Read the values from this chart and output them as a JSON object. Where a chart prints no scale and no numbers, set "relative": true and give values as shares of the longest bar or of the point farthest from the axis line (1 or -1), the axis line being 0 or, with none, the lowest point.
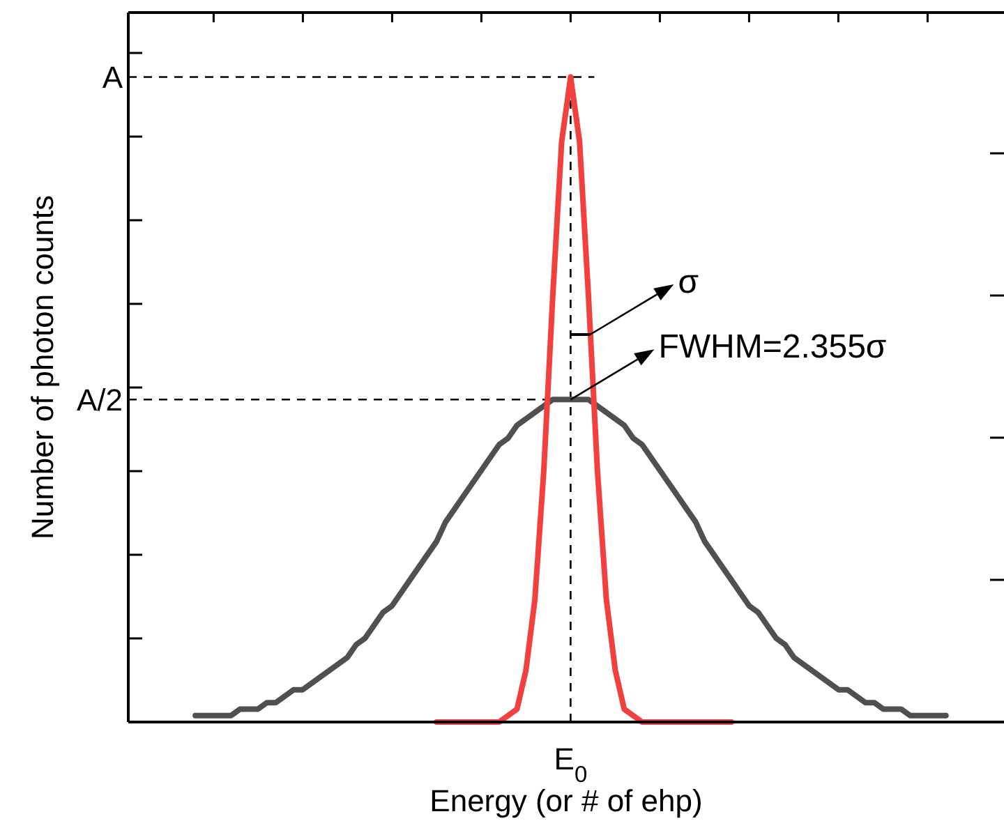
{
  "chart_data": {
    "type": "line",
    "relative": true,
    "xlabel": "Energy (or # of ehp)",
    "ylabel": "Number of photon counts",
    "categories": [
      null,
      null,
      null,
      null,
      null,
      null,
      null,
      null,
      null,
      null,
      null,
      null,
      null,
      null,
      null,
      null,
      null,
      null,
      null,
      null,
      null,
      null,
      null,
      null,
      null,
      null,
      null,
      null,
      null,
      null,
      null,
      null,
      null,
      null,
      null,
      null,
      null,
      null,
      null,
      null,
      null,
      null,
      null,
      null,
      null,
      null,
      null,
      null,
      null,
      null,
      null,
      null,
      null,
      null,
      null,
      null,
      null,
      null,
      null,
      null,
      null,
      null,
      null,
      null,
      null,
      null,
      null,
      null,
      null,
      null,
      null,
      null,
      null,
      null,
      null,
      null,
      null,
      null,
      null,
      null,
      null,
      null,
      null,
      null,
      null,
      null,
      null,
      null,
      null,
      null,
      null,
      null,
      null,
      null,
      null,
      null,
      null,
      null
    ],
    "grid": false,
    "legend": false,
    "marker": "none",
    "line_style": "solid",
    "series": [
      {
        "color": "#505050",
        "values": [
          null,
          null,
          null,
          null,
          null,
          null,
          null,
          0.01,
          0.01,
          0.01,
          0.01,
          0.01,
          0.02,
          0.02,
          0.02,
          0.03,
          0.03,
          0.04,
          0.05,
          0.05,
          0.06,
          0.07,
          0.08,
          0.09,
          0.1,
          0.12,
          0.13,
          0.15,
          0.17,
          0.18,
          0.2,
          0.22,
          0.24,
          0.26,
          0.28,
          0.31,
          0.33,
          0.35,
          0.37,
          0.39,
          0.41,
          0.43,
          0.44,
          0.46,
          0.47,
          0.48,
          0.49,
          0.5,
          0.5,
          0.5,
          0.5,
          0.5,
          0.49,
          0.48,
          0.47,
          0.46,
          0.44,
          0.43,
          0.41,
          0.39,
          0.37,
          0.35,
          0.33,
          0.31,
          0.28,
          0.26,
          0.24,
          0.22,
          0.2,
          0.18,
          0.17,
          0.15,
          0.13,
          0.12,
          0.1,
          0.09,
          0.08,
          0.07,
          0.06,
          0.05,
          0.05,
          0.04,
          0.03,
          0.03,
          0.02,
          0.02,
          0.02,
          0.01,
          0.01,
          0.01,
          0.01,
          0.01,
          null,
          null,
          null,
          null,
          null,
          null
        ]
      },
      {
        "color": "#f04040",
        "values": [
          null,
          null,
          null,
          null,
          null,
          null,
          null,
          null,
          null,
          null,
          null,
          null,
          null,
          null,
          null,
          null,
          null,
          null,
          null,
          null,
          null,
          null,
          null,
          null,
          null,
          null,
          null,
          null,
          null,
          null,
          null,
          null,
          null,
          null,
          0,
          0,
          0,
          0,
          0,
          0,
          0,
          0,
          0.01,
          0.02,
          0.08,
          0.19,
          0.39,
          0.66,
          0.9,
          1,
          0.9,
          0.66,
          0.39,
          0.19,
          0.08,
          0.02,
          0.01,
          0,
          0,
          0,
          0,
          0,
          0,
          0,
          0,
          0,
          0,
          0,
          null,
          null,
          null,
          null,
          null,
          null,
          null,
          null,
          null,
          null,
          null,
          null,
          null,
          null,
          null,
          null,
          null,
          null,
          null,
          null,
          null,
          null,
          null,
          null,
          null,
          null,
          null,
          null,
          null,
          null
        ]
      }
    ],
    "ref_lines": [
      {
        "axis": "y",
        "value": 1,
        "color": "#000000",
        "line_style": "dashed"
      },
      {
        "axis": "y",
        "value": 0.5,
        "color": "#000000",
        "line_style": "dashed"
      }
    ],
    "annotations": [
      "A",
      "A/2",
      "E$_{0}$",
      "σ",
      "FWHM=2.355σ"
    ]
  }
}
